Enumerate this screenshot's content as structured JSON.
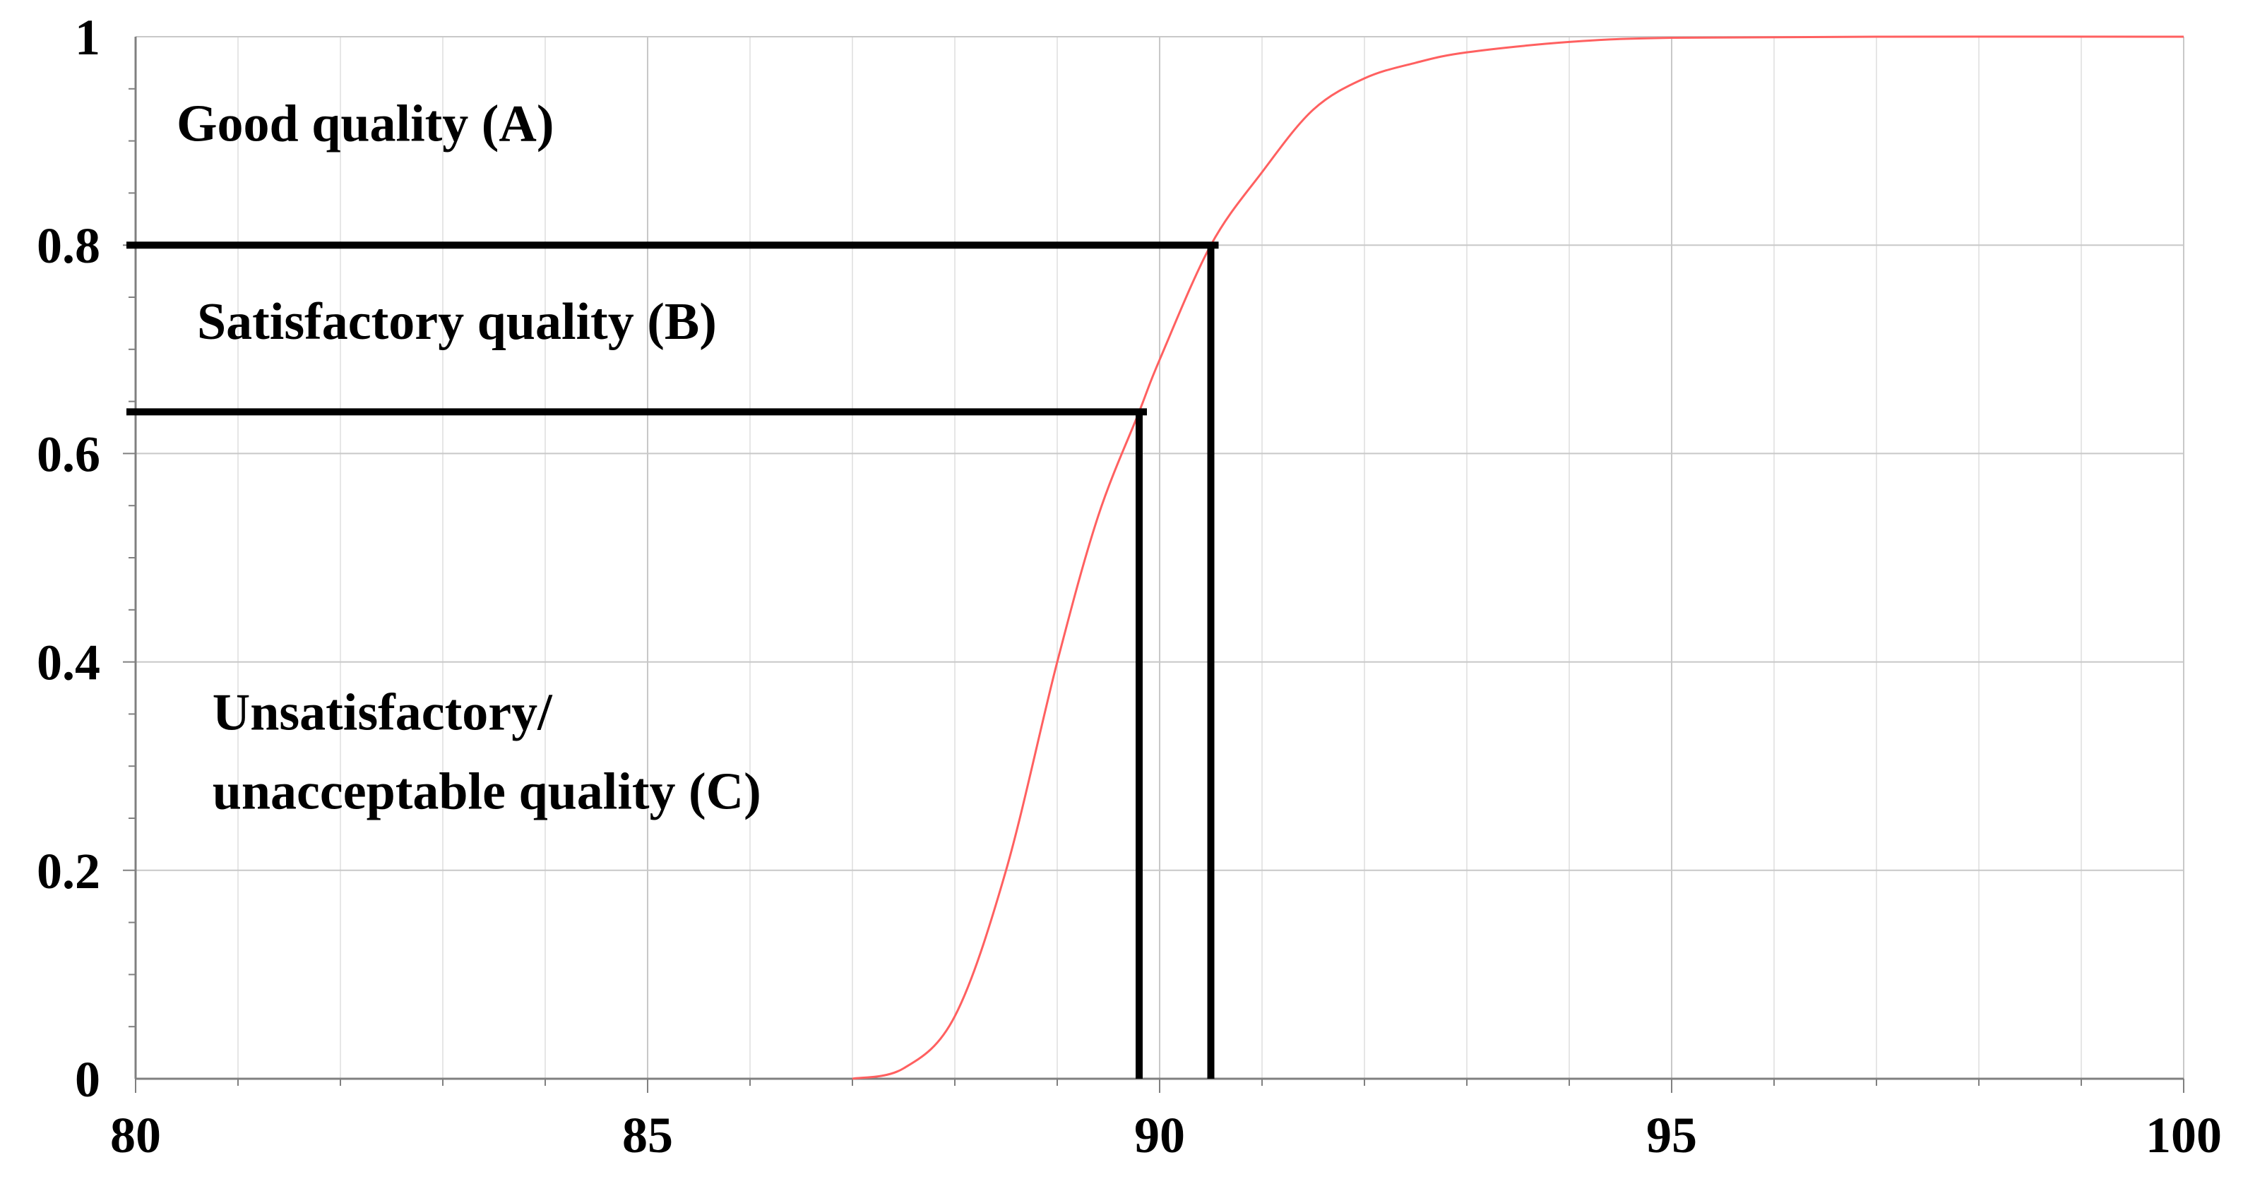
{
  "chart_data": {
    "type": "line",
    "title": "",
    "xlabel": "",
    "ylabel": "",
    "xlim": [
      80,
      100
    ],
    "ylim": [
      0,
      1
    ],
    "x_ticks": [
      80,
      85,
      90,
      95,
      100
    ],
    "x_tick_labels": [
      "80",
      "85",
      "90",
      "95",
      "100"
    ],
    "y_ticks": [
      0,
      0.2,
      0.4,
      0.6,
      0.8,
      1
    ],
    "y_tick_labels": [
      "0",
      "0.2",
      "0.4",
      "0.6",
      "0.8",
      "1"
    ],
    "grid": true,
    "series": [
      {
        "color": "#ff6060",
        "points": [
          [
            87.0,
            0.0
          ],
          [
            87.5,
            0.01
          ],
          [
            88.0,
            0.06
          ],
          [
            88.5,
            0.2
          ],
          [
            89.0,
            0.4
          ],
          [
            89.4,
            0.54
          ],
          [
            89.8,
            0.64
          ],
          [
            90.0,
            0.69
          ],
          [
            90.5,
            0.8
          ],
          [
            91.0,
            0.87
          ],
          [
            91.5,
            0.93
          ],
          [
            92.0,
            0.96
          ],
          [
            92.5,
            0.975
          ],
          [
            93.0,
            0.985
          ],
          [
            94.0,
            0.995
          ],
          [
            95.0,
            0.999
          ],
          [
            97.0,
            1.0
          ],
          [
            100.0,
            1.0
          ]
        ]
      }
    ],
    "thresholds": [
      {
        "x": 90.5,
        "y": 0.8,
        "color": "#000000"
      },
      {
        "x": 89.8,
        "y": 0.64,
        "color": "#000000"
      }
    ],
    "annotations": [
      {
        "lines": [
          "Good quality (A)"
        ],
        "x": 80.4,
        "y": 0.9
      },
      {
        "lines": [
          "Satisfactory quality (B)"
        ],
        "x": 80.6,
        "y": 0.71
      },
      {
        "lines": [
          "Unsatisfactory/",
          "unacceptable quality (C)"
        ],
        "x": 80.75,
        "y": 0.335
      }
    ]
  }
}
